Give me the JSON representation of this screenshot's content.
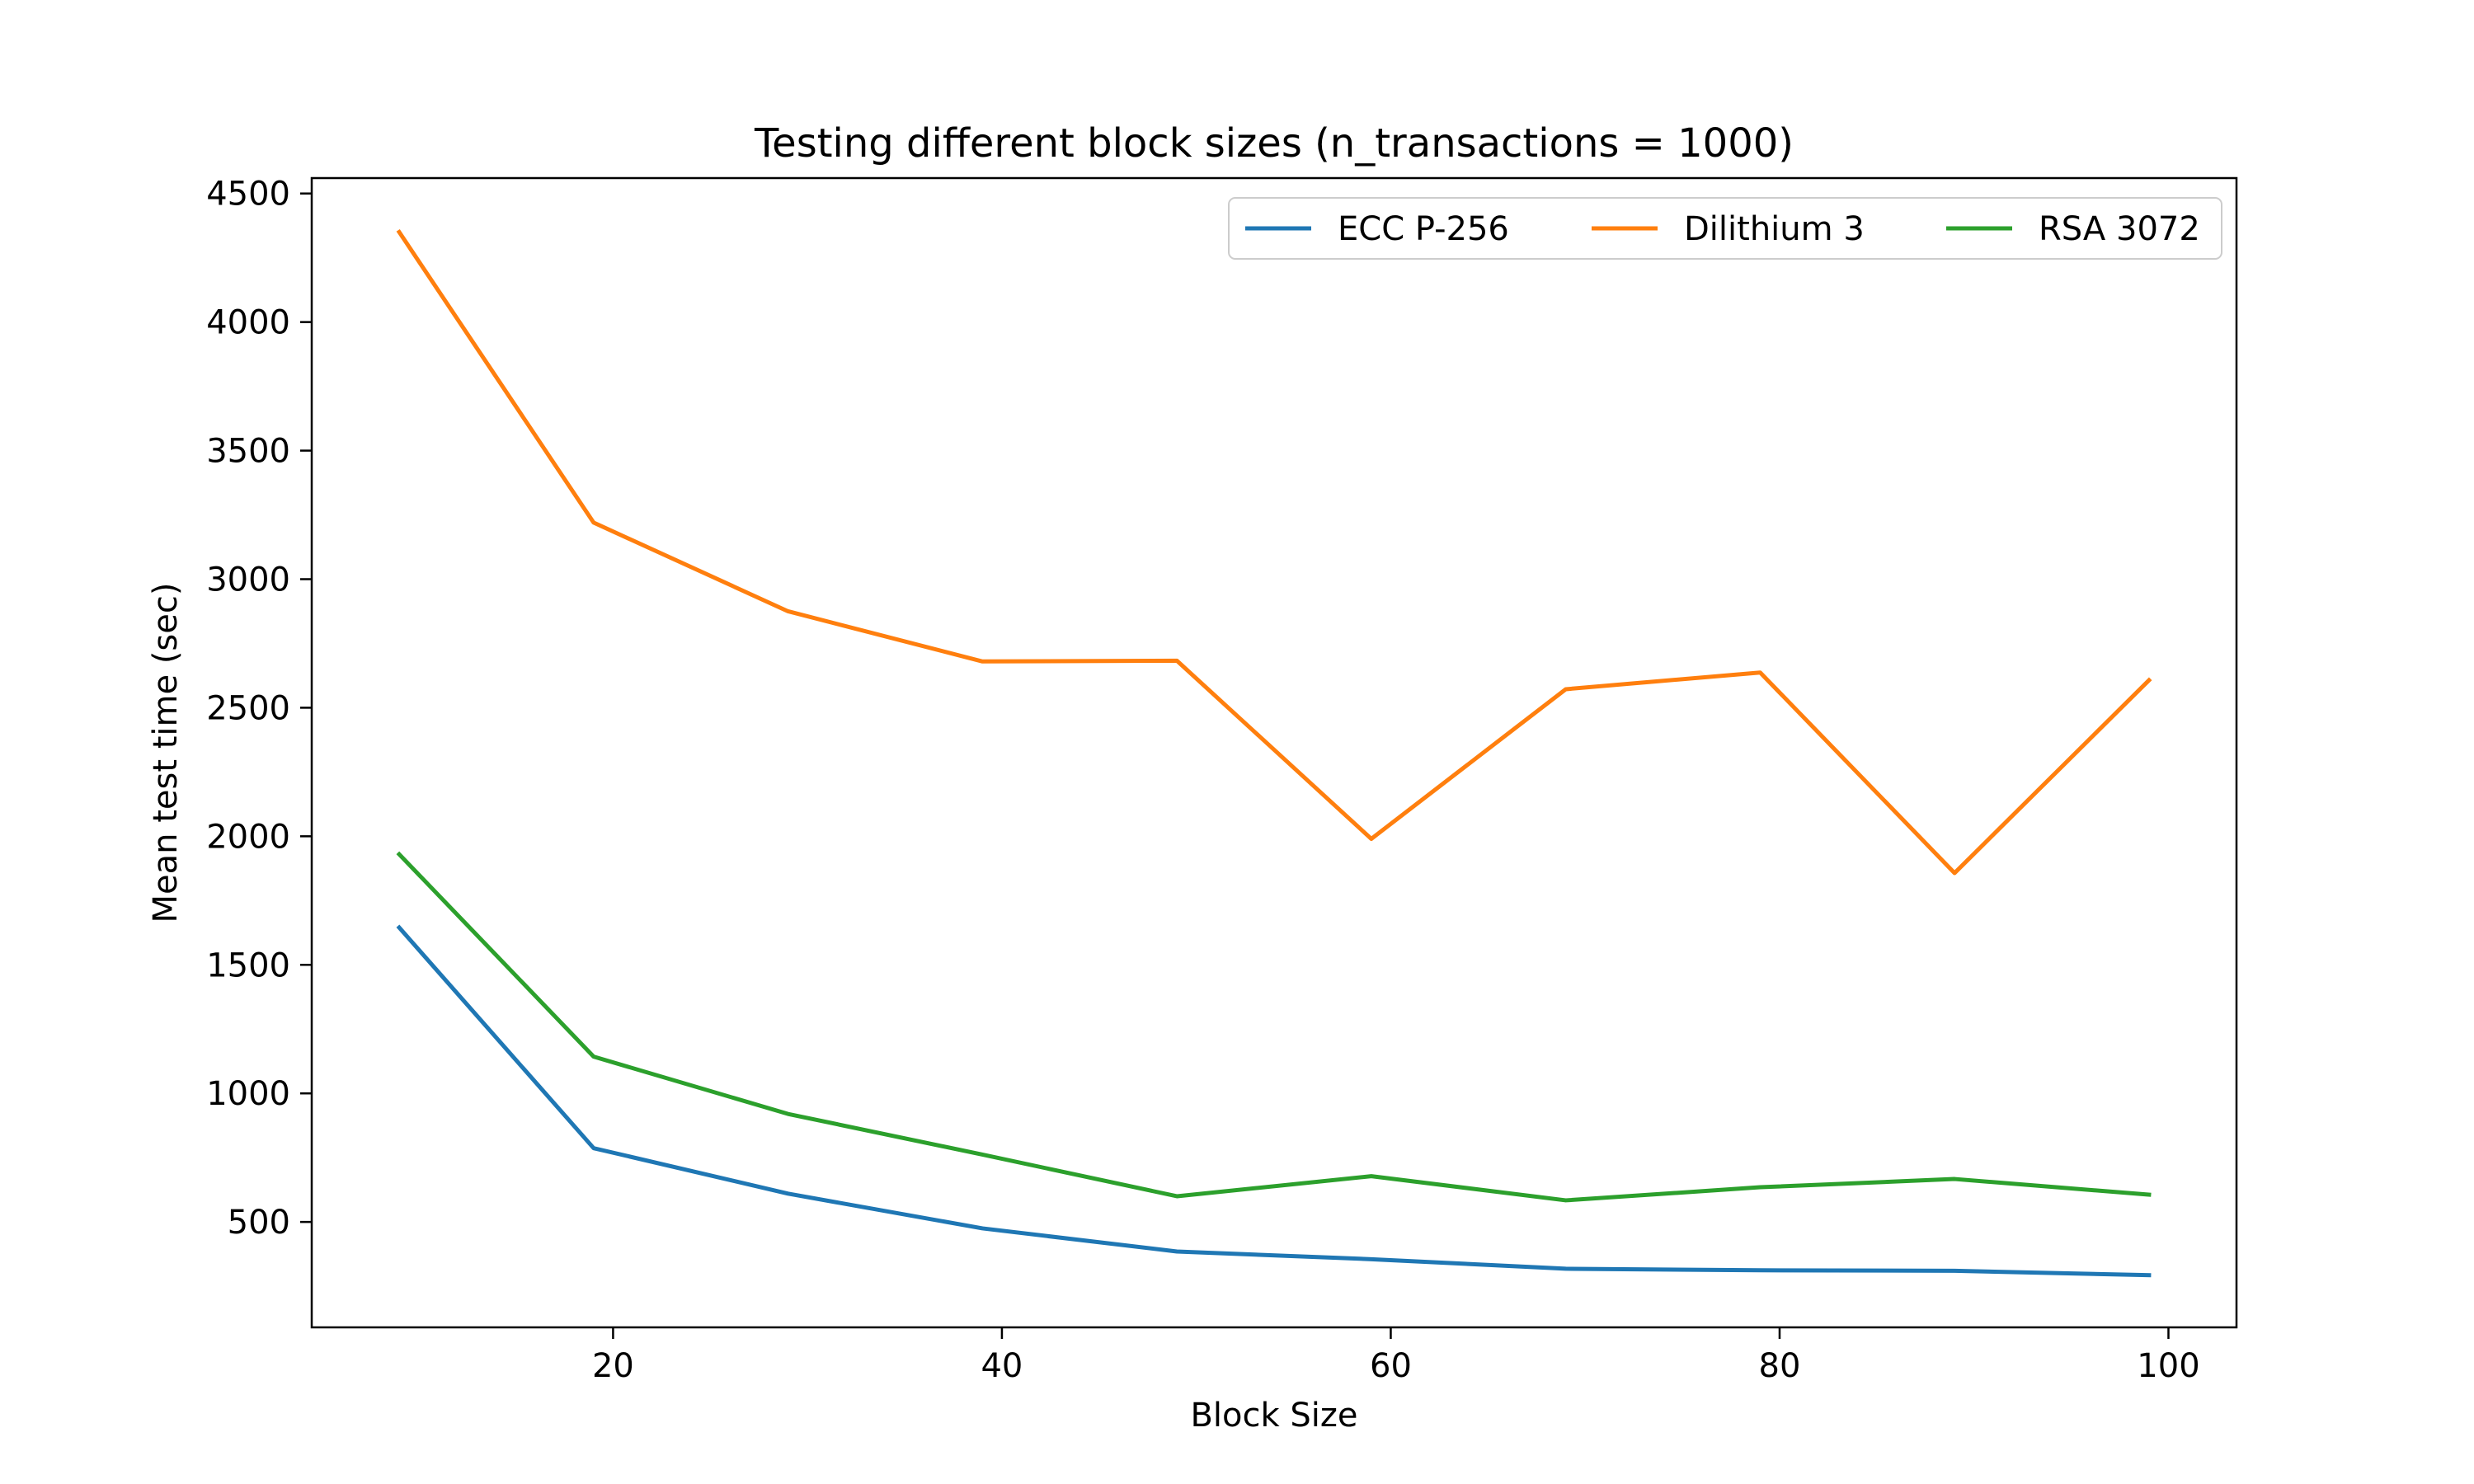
{
  "chart_data": {
    "type": "line",
    "title": "Testing different block sizes (n_transactions = 1000)",
    "xlabel": "Block Size",
    "ylabel": "Mean test time (sec)",
    "x": [
      9,
      19,
      29,
      39,
      49,
      59,
      69,
      79,
      89,
      99
    ],
    "xlim": [
      4.5,
      103.5
    ],
    "ylim": [
      90,
      4560
    ],
    "xticks": [
      20,
      40,
      60,
      80,
      100
    ],
    "yticks": [
      500,
      1000,
      1500,
      2000,
      2500,
      3000,
      3500,
      4000,
      4500
    ],
    "grid": false,
    "legend_position": "top-right",
    "series": [
      {
        "name": "ECC P-256",
        "color": "#1f77b4",
        "values": [
          1645,
          787,
          610,
          475,
          385,
          355,
          318,
          312,
          310,
          293
        ]
      },
      {
        "name": "Dilithium 3",
        "color": "#ff7f0e",
        "values": [
          4350,
          3220,
          2875,
          2680,
          2683,
          1990,
          2572,
          2637,
          1857,
          2607
        ]
      },
      {
        "name": "RSA 3072",
        "color": "#2ca02c",
        "values": [
          1930,
          1143,
          920,
          762,
          600,
          678,
          584,
          635,
          667,
          606
        ]
      }
    ]
  }
}
